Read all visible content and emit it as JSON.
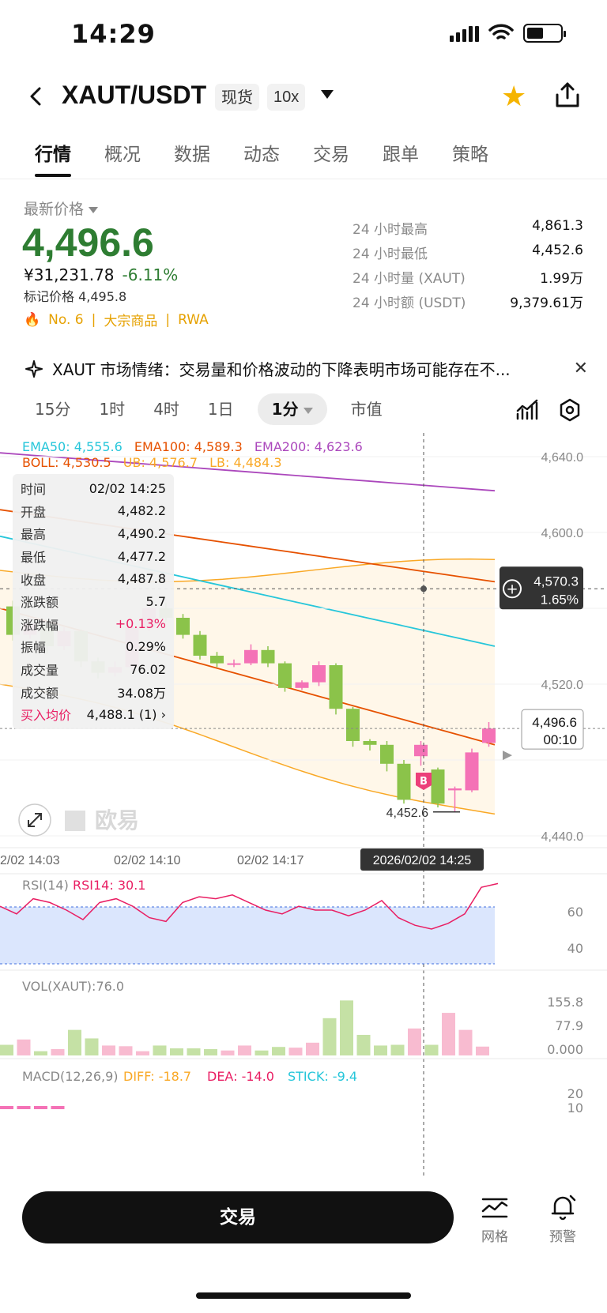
{
  "status": {
    "time": "14:29"
  },
  "header": {
    "pair": "XAUT/USDT",
    "tag_spot": "现货",
    "tag_leverage": "10x"
  },
  "tabs": [
    "行情",
    "概况",
    "数据",
    "动态",
    "交易",
    "跟单",
    "策略"
  ],
  "price": {
    "label": "最新价格",
    "last": "4,496.6",
    "cny": "¥31,231.78",
    "change": "-6.11%",
    "mark": "标记价格 4,495.8",
    "rank": "No. 6",
    "category": "大宗商品",
    "rwa": "RWA"
  },
  "stats": [
    {
      "k": "24 小时最高",
      "v": "4,861.3"
    },
    {
      "k": "24 小时最低",
      "v": "4,452.6"
    },
    {
      "k": "24 小时量 (XAUT)",
      "v": "1.99万"
    },
    {
      "k": "24 小时额 (USDT)",
      "v": "9,379.61万"
    }
  ],
  "sentiment": "XAUT 市场情绪：交易量和价格波动的下降表明市场可能存在不...",
  "intervals": [
    "15分",
    "1时",
    "4时",
    "1日",
    "1分",
    "市值"
  ],
  "indicators": {
    "ema50": "EMA50: 4,555.6",
    "ema100": "EMA100: 4,589.3",
    "ema200": "EMA200: 4,623.6",
    "boll": "BOLL: 4,530.5",
    "ub": "UB: 4,576.7",
    "lb": "LB: 4,484.3"
  },
  "tooltip": [
    {
      "k": "时间",
      "v": "02/02 14:25"
    },
    {
      "k": "开盘",
      "v": "4,482.2"
    },
    {
      "k": "最高",
      "v": "4,490.2"
    },
    {
      "k": "最低",
      "v": "4,477.2"
    },
    {
      "k": "收盘",
      "v": "4,487.8"
    },
    {
      "k": "涨跌额",
      "v": "5.7"
    },
    {
      "k": "涨跌幅",
      "v": "+0.13%"
    },
    {
      "k": "振幅",
      "v": "0.29%"
    },
    {
      "k": "成交量",
      "v": "76.02"
    },
    {
      "k": "成交额",
      "v": "34.08万"
    },
    {
      "k": "买入均价",
      "v": "4,488.1 (1)"
    }
  ],
  "chart": {
    "y_labels": [
      "4,640.0",
      "4,600.0",
      "4,520.0",
      "4,440.0"
    ],
    "x_labels": [
      "2/02 14:03",
      "02/02 14:10",
      "02/02 14:17"
    ],
    "crosshair_time": "2026/02/02 14:25",
    "crosshair_price": "4,570.3",
    "crosshair_pct": "1.65%",
    "last_price": "4,496.6",
    "countdown": "00:10",
    "low_marker": "4,452.6",
    "buy_marker": "B",
    "watermark": "欧易"
  },
  "rsi": {
    "label": "RSI(14)",
    "value": "RSI14: 30.1",
    "axis": [
      "60",
      "40"
    ]
  },
  "vol": {
    "label": "VOL(XAUT):76.0",
    "axis": [
      "155.8",
      "77.9",
      "0.000"
    ]
  },
  "macd": {
    "label": "MACD(12,26,9)",
    "diff": "DIFF: -18.7",
    "dea": "DEA: -14.0",
    "stick": "STICK: -9.4",
    "axis": [
      "20",
      "10"
    ]
  },
  "bottom": {
    "trade": "交易",
    "grid": "网格",
    "alert": "预警"
  },
  "chart_data": {
    "type": "candlestick",
    "interval": "1分",
    "candles": [
      {
        "o": 4561,
        "c": 4546,
        "h": 4564,
        "l": 4543
      },
      {
        "o": 4546,
        "c": 4552,
        "h": 4555,
        "l": 4544
      },
      {
        "o": 4552,
        "c": 4540,
        "h": 4554,
        "l": 4536
      },
      {
        "o": 4540,
        "c": 4548,
        "h": 4550,
        "l": 4538
      },
      {
        "o": 4548,
        "c": 4532,
        "h": 4549,
        "l": 4529
      },
      {
        "o": 4532,
        "c": 4526,
        "h": 4534,
        "l": 4523
      },
      {
        "o": 4526,
        "c": 4529,
        "h": 4532,
        "l": 4524
      },
      {
        "o": 4529,
        "c": 4550,
        "h": 4554,
        "l": 4527
      },
      {
        "o": 4550,
        "c": 4560,
        "h": 4564,
        "l": 4548
      },
      {
        "o": 4560,
        "c": 4555,
        "h": 4563,
        "l": 4553
      },
      {
        "o": 4555,
        "c": 4546,
        "h": 4557,
        "l": 4544
      },
      {
        "o": 4546,
        "c": 4535,
        "h": 4548,
        "l": 4533
      },
      {
        "o": 4535,
        "c": 4531,
        "h": 4537,
        "l": 4529
      },
      {
        "o": 4531,
        "c": 4531,
        "h": 4533,
        "l": 4529
      },
      {
        "o": 4531,
        "c": 4538,
        "h": 4541,
        "l": 4530
      },
      {
        "o": 4538,
        "c": 4531,
        "h": 4540,
        "l": 4529
      },
      {
        "o": 4531,
        "c": 4518,
        "h": 4532,
        "l": 4516
      },
      {
        "o": 4518,
        "c": 4521,
        "h": 4522,
        "l": 4517
      },
      {
        "o": 4521,
        "c": 4530,
        "h": 4532,
        "l": 4519
      },
      {
        "o": 4530,
        "c": 4507,
        "h": 4531,
        "l": 4504
      },
      {
        "o": 4507,
        "c": 4490,
        "h": 4508,
        "l": 4487
      },
      {
        "o": 4490,
        "c": 4488,
        "h": 4491,
        "l": 4485
      },
      {
        "o": 4488,
        "c": 4478,
        "h": 4490,
        "l": 4474
      },
      {
        "o": 4478,
        "c": 4459,
        "h": 4480,
        "l": 4457
      },
      {
        "o": 4482,
        "c": 4488,
        "h": 4490,
        "l": 4477
      },
      {
        "o": 4475,
        "c": 4457,
        "h": 4476,
        "l": 4455
      },
      {
        "o": 4464,
        "c": 4465,
        "h": 4466,
        "l": 4452.6
      },
      {
        "o": 4464,
        "c": 4484,
        "h": 4486,
        "l": 4463
      },
      {
        "o": 4489,
        "c": 4496.6,
        "h": 4500,
        "l": 4487
      }
    ],
    "volume": [
      30,
      45,
      12,
      18,
      72,
      48,
      28,
      26,
      12,
      28,
      20,
      20,
      18,
      14,
      28,
      14,
      24,
      22,
      36,
      105,
      155,
      58,
      28,
      30,
      76,
      30,
      120,
      72,
      25
    ]
  }
}
